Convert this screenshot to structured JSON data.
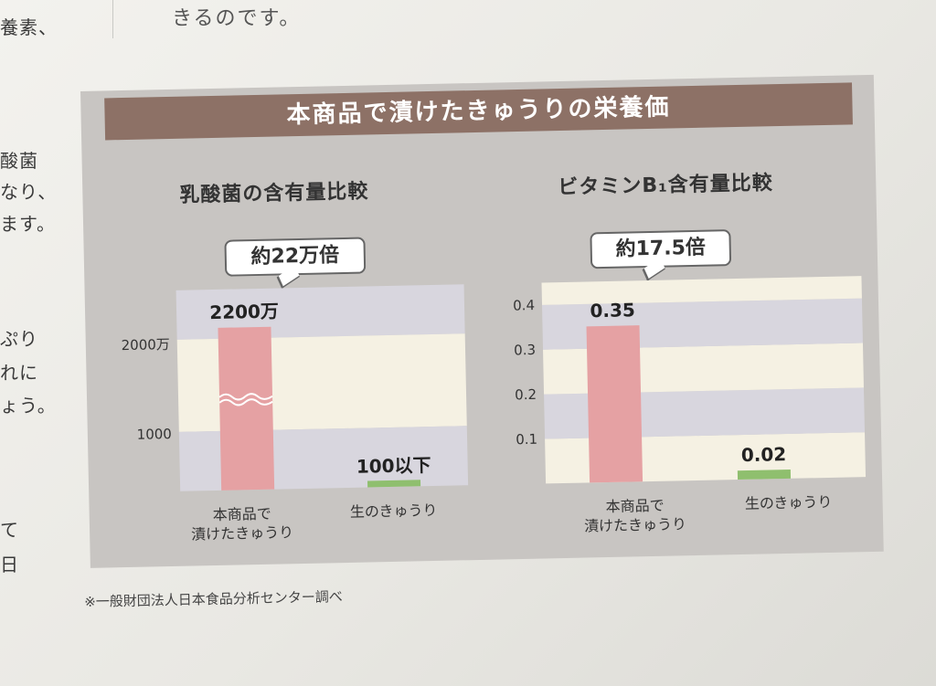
{
  "page": {
    "left_fragments": [
      "養素、",
      "酸菌",
      "なり、",
      "ます。",
      "ぷり",
      "れに",
      "ょう。",
      "て",
      "日"
    ],
    "top_text": "きるのです。"
  },
  "banner_title": "本商品で漬けたきゅうりの栄養価",
  "footnote": "※一般財団法人日本食品分析センター調べ",
  "colors": {
    "banner": "#8d7166",
    "product_bar": "#e5a1a3",
    "raw_bar": "#8fbf6e",
    "band_light": "#f5f1e3",
    "band_dark": "#d8d6de"
  },
  "chart_data": [
    {
      "type": "bar",
      "title": "乳酸菌の含有量比較",
      "callout": "約22万倍",
      "categories": [
        "本商品で 漬けたきゅうり",
        "生のきゅうり"
      ],
      "category_lines": [
        [
          "本商品で",
          "漬けたきゅうり"
        ],
        [
          "生のきゅうり"
        ]
      ],
      "values": [
        22000000,
        100
      ],
      "value_labels": [
        "2200万",
        "100以下"
      ],
      "y_tick_labels": [
        "2000万",
        "1000"
      ],
      "axis_break": true
    },
    {
      "type": "bar",
      "title": "ビタミンB₁含有量比較",
      "callout": "約17.5倍",
      "categories": [
        "本商品で 漬けたきゅうり",
        "生のきゅうり"
      ],
      "category_lines": [
        [
          "本商品で",
          "漬けたきゅうり"
        ],
        [
          "生のきゅうり"
        ]
      ],
      "values": [
        0.35,
        0.02
      ],
      "value_labels": [
        "0.35",
        "0.02"
      ],
      "y_ticks": [
        0.1,
        0.2,
        0.3,
        0.4
      ],
      "y_tick_labels": [
        "0.1",
        "0.2",
        "0.3",
        "0.4"
      ],
      "ylim": [
        0,
        0.45
      ]
    }
  ]
}
